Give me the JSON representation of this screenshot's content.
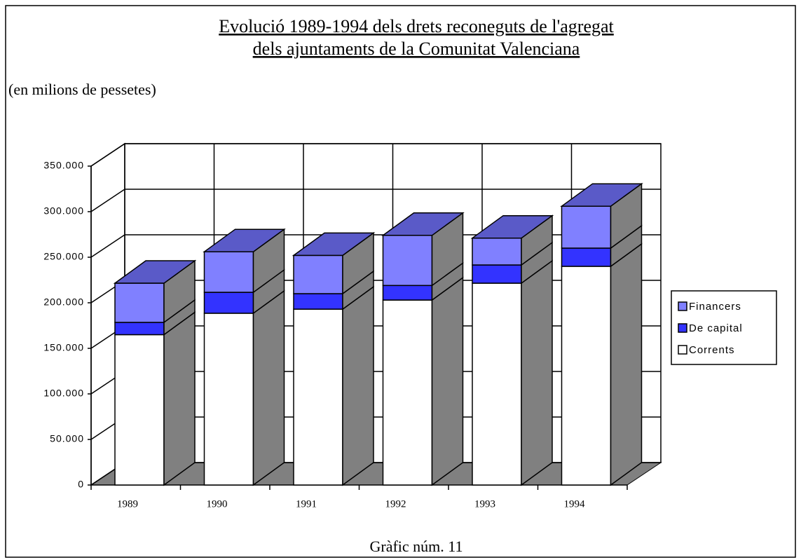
{
  "chart_data": {
    "type": "bar3d_stacked",
    "title": [
      "Evolució 1989-1994 dels drets reconeguts de l'agregat",
      "dels ajuntaments de la Comunitat Valenciana"
    ],
    "subtitle": "(en milions de pessetes)",
    "caption": "Gràfic núm. 11",
    "categories": [
      "1989",
      "1990",
      "1991",
      "1992",
      "1993",
      "1994"
    ],
    "series": [
      {
        "name": "Corrents",
        "color": "#ffffff",
        "values": [
          165000,
          188500,
          193000,
          203000,
          221500,
          240000
        ]
      },
      {
        "name": "De capital",
        "color": "#3333ff",
        "values": [
          13500,
          23000,
          17000,
          16000,
          20000,
          20000
        ]
      },
      {
        "name": "Financers",
        "color": "#8080ff",
        "values": [
          43000,
          44500,
          42000,
          55000,
          29500,
          46000
        ]
      }
    ],
    "ylim": [
      0,
      350000
    ],
    "yticks": [
      0,
      {
        "value": 50000,
        "label": "50.000"
      },
      {
        "value": 100000,
        "label": "100.000"
      },
      {
        "value": 150000,
        "label": "150.000"
      },
      {
        "value": 200000,
        "label": "200.000"
      },
      {
        "value": 250000,
        "label": "250.000"
      },
      {
        "value": 300000,
        "label": "300.000"
      },
      {
        "value": 350000,
        "label": "350.000"
      }
    ],
    "grid": true,
    "legend": "right",
    "stacked": true
  }
}
